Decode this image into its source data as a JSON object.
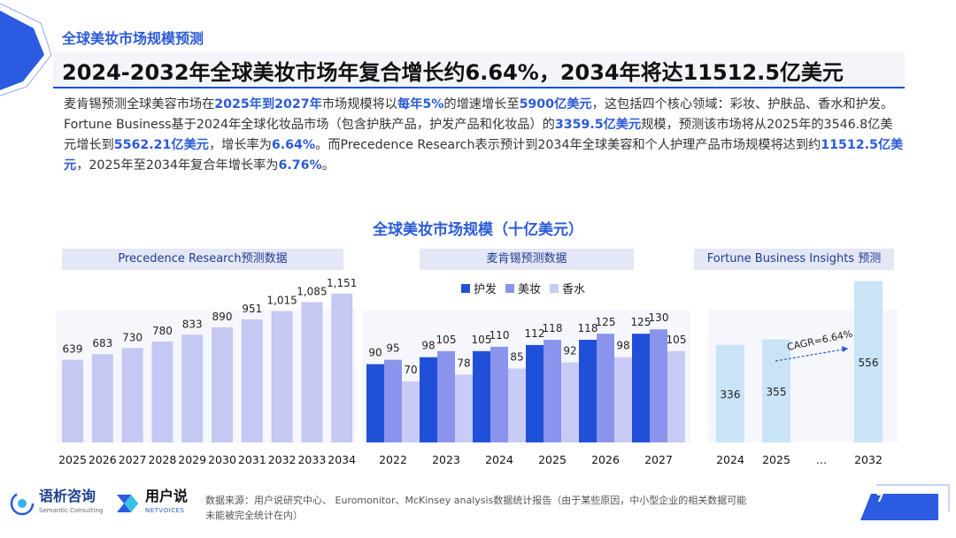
{
  "header": {
    "kicker": "全球美妆市场规模预测",
    "headline": "2024-2032年全球美妆市场年复合增长约6.64%，2034年将达11512.5亿美元"
  },
  "intro": {
    "p1": "麦肯锡预测全球美容市场在",
    "h1": "2025年到2027年",
    "p2": "市场规模将以",
    "h2": "每年5%",
    "p3": "的增速增长至",
    "h3": "5900亿美元",
    "p4": "，这包括四个核心领域：彩妆、护肤品、香水和护发。Fortune Business基于2024年全球化妆品市场（包含护肤产品，护发产品和化妆品）的",
    "h4": "3359.5亿美元",
    "p5": "规模，预测该市场将从2025年的3546.8亿美元增长到",
    "h5": "5562.21亿美元",
    "p6": "，增长率为",
    "h6": "6.64%",
    "p7": "。而Precedence Research表示预计到2034年全球美容和个人护理产品市场规模将达到约",
    "h7": "11512.5亿美元",
    "p8": "，2025年至2034年复合年增长率为",
    "h8": "6.76%",
    "p9": "。"
  },
  "chart_title": "全球美妆市场规模（十亿美元）",
  "colors": {
    "precedence": "#c5c8f3",
    "hair": "#2150d8",
    "makeup": "#8b94ec",
    "fragrance": "#c8cbf6",
    "fortune": "#c9e4f7",
    "accent": "#2b5bd7"
  },
  "chart_data": [
    {
      "type": "bar",
      "panel_label": "Precedence Research预测数据",
      "categories": [
        "2025",
        "2026",
        "2027",
        "2028",
        "2029",
        "2030",
        "2031",
        "2032",
        "2033",
        "2034"
      ],
      "values": [
        639,
        683,
        730,
        780,
        833,
        890,
        951,
        1015,
        1085,
        1151
      ],
      "value_labels": [
        "639",
        "683",
        "730",
        "780",
        "833",
        "890",
        "951",
        "1,015",
        "1,085",
        "1,151"
      ],
      "ylim": [
        0,
        1300
      ]
    },
    {
      "type": "bar",
      "panel_label": "麦肯锡预测数据",
      "categories": [
        "2022",
        "2023",
        "2024",
        "2025",
        "2026",
        "2027"
      ],
      "series": [
        {
          "name": "护发",
          "values": [
            90,
            98,
            105,
            112,
            118,
            125
          ]
        },
        {
          "name": "美妆",
          "values": [
            95,
            105,
            110,
            118,
            125,
            130
          ]
        },
        {
          "name": "香水",
          "values": [
            70,
            78,
            85,
            92,
            98,
            105
          ]
        }
      ],
      "ylim": [
        0,
        175
      ],
      "legend": "top-center"
    },
    {
      "type": "bar",
      "panel_label": "Fortune Business Insights 预测",
      "categories": [
        "2024",
        "2025",
        "…",
        "2032"
      ],
      "values": [
        336,
        355,
        null,
        556
      ],
      "value_labels": [
        "336",
        "355",
        "",
        "556"
      ],
      "ylim": [
        0,
        640
      ],
      "annotation": "CAGR=6.64%"
    }
  ],
  "footer": {
    "logo1_name": "语析咨询",
    "logo1_sub": "Semantic Consulting",
    "logo2_name": "用户说",
    "logo2_sub": "NETVOICES",
    "source": "数据来源：用户说研究中心、 Euromonitor、McKinsey analysis数据统计报告（由于某些原因，中小型企业的相关数据可能未能被完全统计在内）",
    "page": "7"
  }
}
